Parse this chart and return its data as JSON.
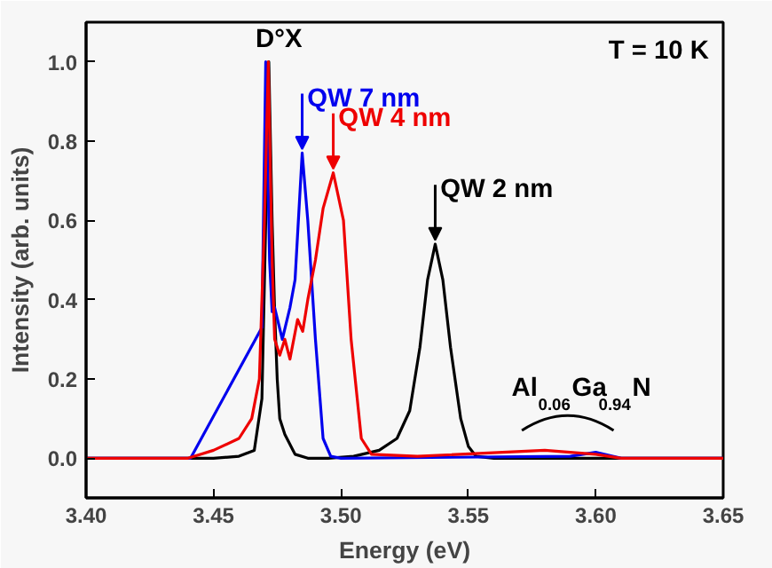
{
  "chart_data": {
    "type": "line",
    "xlabel": "Energy (eV)",
    "ylabel": "Intensity (arb. units)",
    "xlim": [
      3.4,
      3.65
    ],
    "xticks": [
      {
        "value": 3.4,
        "label": "3.40"
      },
      {
        "value": 3.45,
        "label": "3.45"
      },
      {
        "value": 3.5,
        "label": "3.50"
      },
      {
        "value": 3.55,
        "label": "3.55"
      },
      {
        "value": 3.6,
        "label": "3.60"
      },
      {
        "value": 3.65,
        "label": "3.65"
      }
    ],
    "ylim": [
      -0.1,
      1.1
    ],
    "yticks": [
      {
        "value": 0,
        "label": "0.0"
      },
      {
        "value": 0.2,
        "label": "0.2"
      },
      {
        "value": 0.4,
        "label": "0.4"
      },
      {
        "value": 0.6,
        "label": "0.6"
      },
      {
        "value": 0.8,
        "label": "0.8"
      },
      {
        "value": 1.0,
        "label": "1.0"
      }
    ],
    "grid": false,
    "marker": "none",
    "line_style": "solid",
    "series": [
      {
        "color": "#000000",
        "x": [
          3.4,
          3.45,
          3.46,
          3.466,
          3.469,
          3.4705,
          3.4717,
          3.473,
          3.474,
          3.475,
          3.476,
          3.478,
          3.482,
          3.487,
          3.495,
          3.505,
          3.515,
          3.522,
          3.527,
          3.531,
          3.534,
          3.537,
          3.54,
          3.543,
          3.547,
          3.55,
          3.553,
          3.56,
          3.6,
          3.65
        ],
        "values": [
          0,
          0,
          0.005,
          0.02,
          0.15,
          0.6,
          1.0,
          0.6,
          0.37,
          0.2,
          0.1,
          0.06,
          0.01,
          0,
          0,
          0.005,
          0.02,
          0.05,
          0.12,
          0.28,
          0.45,
          0.54,
          0.45,
          0.28,
          0.1,
          0.03,
          0.005,
          0,
          0,
          0
        ]
      },
      {
        "color": "#0000ee",
        "x": [
          3.4,
          3.441,
          3.469,
          3.4705,
          3.472,
          3.473,
          3.474,
          3.477,
          3.48,
          3.482,
          3.4848,
          3.487,
          3.49,
          3.493,
          3.496,
          3.5,
          3.59,
          3.6,
          3.61,
          3.65
        ],
        "values": [
          0,
          0,
          0.33,
          1.0,
          0.5,
          0.37,
          0.38,
          0.3,
          0.38,
          0.45,
          0.77,
          0.6,
          0.3,
          0.05,
          0.005,
          0,
          0.005,
          0.015,
          0,
          0
        ]
      },
      {
        "color": "#ee0000",
        "x": [
          3.4,
          3.44,
          3.45,
          3.46,
          3.465,
          3.468,
          3.47,
          3.4715,
          3.473,
          3.474,
          3.476,
          3.478,
          3.48,
          3.483,
          3.485,
          3.487,
          3.49,
          3.493,
          3.497,
          3.501,
          3.504,
          3.508,
          3.512,
          3.53,
          3.58,
          3.6,
          3.61,
          3.65
        ],
        "values": [
          0,
          0,
          0.02,
          0.05,
          0.1,
          0.2,
          0.6,
          1.0,
          0.5,
          0.3,
          0.26,
          0.3,
          0.25,
          0.35,
          0.32,
          0.4,
          0.5,
          0.63,
          0.72,
          0.6,
          0.3,
          0.05,
          0.01,
          0.005,
          0.02,
          0.01,
          0,
          0
        ]
      }
    ],
    "annotations": [
      "D°X",
      "T = 10 K",
      "Al$_{0.06}$Ga$_{0.94}$N",
      {
        "text": "QW 7 nm",
        "x": 3.4848,
        "y": 0.77
      },
      {
        "text": "QW 4 nm",
        "x": 3.497,
        "y": 0.72
      },
      {
        "text": "QW 2 nm",
        "x": 3.537,
        "y": 0.54
      }
    ]
  }
}
